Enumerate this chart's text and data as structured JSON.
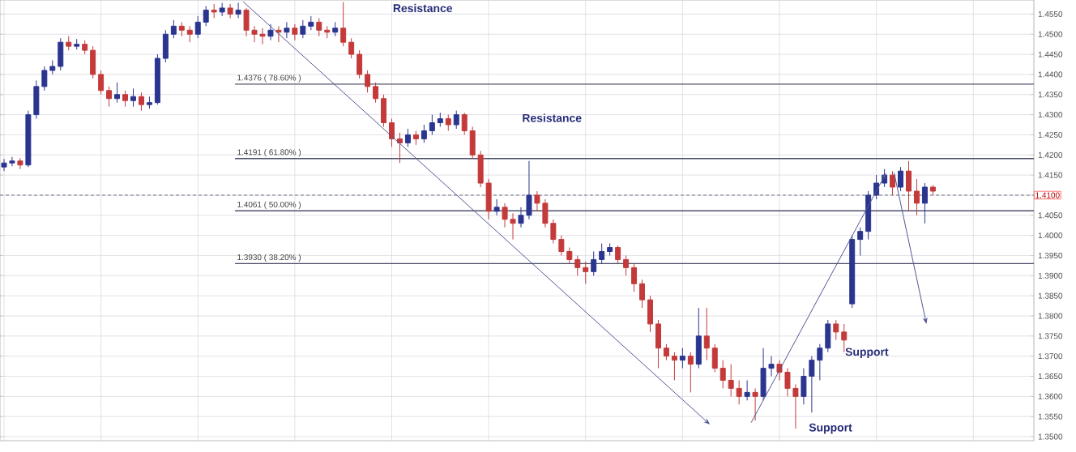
{
  "chart_data": {
    "type": "candlestick",
    "categories": [
      null,
      null,
      null,
      null,
      null,
      null,
      null,
      null,
      null,
      null,
      null,
      null,
      null,
      null,
      null,
      null,
      null,
      null,
      null,
      null,
      null,
      null,
      null,
      null,
      null,
      null,
      null,
      null,
      null,
      null,
      null,
      null,
      null,
      null,
      null,
      null,
      null,
      null,
      null,
      null,
      null,
      null,
      null,
      null,
      null,
      null,
      null,
      null,
      null,
      null,
      null,
      null,
      null,
      null,
      null,
      null,
      null,
      null,
      null,
      null,
      null,
      null,
      null,
      null,
      null,
      null,
      null,
      null,
      null,
      null,
      null,
      null,
      null,
      null,
      null,
      null,
      null,
      null,
      null,
      null,
      null,
      null,
      null,
      null,
      null,
      null,
      null,
      null,
      null,
      null,
      null,
      null,
      null,
      null,
      null,
      null,
      null,
      null,
      null,
      null,
      null,
      null,
      null,
      null,
      null,
      null,
      null,
      null,
      null,
      null,
      null,
      null,
      null,
      null,
      null,
      null,
      null,
      null,
      null,
      null,
      null,
      null,
      null,
      null,
      null,
      null,
      null,
      null
    ],
    "ohlc": [
      [
        1.417,
        1.419,
        1.416,
        1.418
      ],
      [
        1.418,
        1.4195,
        1.4172,
        1.4185
      ],
      [
        1.4185,
        1.4192,
        1.4165,
        1.4175
      ],
      [
        1.4175,
        1.431,
        1.417,
        1.43
      ],
      [
        1.43,
        1.4385,
        1.429,
        1.437
      ],
      [
        1.437,
        1.442,
        1.436,
        1.441
      ],
      [
        1.441,
        1.4435,
        1.44,
        1.442
      ],
      [
        1.442,
        1.449,
        1.441,
        1.448
      ],
      [
        1.448,
        1.4495,
        1.446,
        1.447
      ],
      [
        1.447,
        1.4488,
        1.4462,
        1.4475
      ],
      [
        1.4475,
        1.4485,
        1.445,
        1.446
      ],
      [
        1.446,
        1.447,
        1.439,
        1.44
      ],
      [
        1.44,
        1.441,
        1.435,
        1.436
      ],
      [
        1.436,
        1.437,
        1.432,
        1.434
      ],
      [
        1.434,
        1.438,
        1.433,
        1.435
      ],
      [
        1.435,
        1.436,
        1.432,
        1.4335
      ],
      [
        1.4335,
        1.4365,
        1.432,
        1.4345
      ],
      [
        1.4345,
        1.4355,
        1.431,
        1.4325
      ],
      [
        1.4325,
        1.4345,
        1.4315,
        1.433
      ],
      [
        1.433,
        1.445,
        1.4325,
        1.444
      ],
      [
        1.444,
        1.451,
        1.443,
        1.45
      ],
      [
        1.45,
        1.4535,
        1.449,
        1.452
      ],
      [
        1.452,
        1.453,
        1.4495,
        1.451
      ],
      [
        1.451,
        1.452,
        1.448,
        1.45
      ],
      [
        1.45,
        1.4545,
        1.449,
        1.453
      ],
      [
        1.453,
        1.457,
        1.452,
        1.456
      ],
      [
        1.456,
        1.4575,
        1.454,
        1.4555
      ],
      [
        1.4555,
        1.4578,
        1.4545,
        1.4565
      ],
      [
        1.4565,
        1.4575,
        1.454,
        1.455
      ],
      [
        1.455,
        1.4578,
        1.454,
        1.456
      ],
      [
        1.456,
        1.4565,
        1.4495,
        1.451
      ],
      [
        1.451,
        1.452,
        1.448,
        1.45
      ],
      [
        1.45,
        1.4515,
        1.4475,
        1.4495
      ],
      [
        1.4495,
        1.4525,
        1.4485,
        1.451
      ],
      [
        1.451,
        1.452,
        1.448,
        1.4505
      ],
      [
        1.4505,
        1.453,
        1.449,
        1.4515
      ],
      [
        1.4515,
        1.4525,
        1.4485,
        1.45
      ],
      [
        1.45,
        1.4535,
        1.449,
        1.452
      ],
      [
        1.452,
        1.4545,
        1.451,
        1.453
      ],
      [
        1.453,
        1.454,
        1.4495,
        1.451
      ],
      [
        1.451,
        1.452,
        1.449,
        1.4505
      ],
      [
        1.4505,
        1.453,
        1.4495,
        1.4515
      ],
      [
        1.4515,
        1.458,
        1.447,
        1.448
      ],
      [
        1.448,
        1.449,
        1.444,
        1.445
      ],
      [
        1.445,
        1.446,
        1.439,
        1.44
      ],
      [
        1.44,
        1.441,
        1.4355,
        1.437
      ],
      [
        1.437,
        1.438,
        1.433,
        1.434
      ],
      [
        1.434,
        1.435,
        1.427,
        1.428
      ],
      [
        1.428,
        1.429,
        1.422,
        1.424
      ],
      [
        1.424,
        1.4255,
        1.418,
        1.423
      ],
      [
        1.423,
        1.4265,
        1.422,
        1.425
      ],
      [
        1.425,
        1.426,
        1.4225,
        1.424
      ],
      [
        1.424,
        1.4275,
        1.423,
        1.426
      ],
      [
        1.426,
        1.43,
        1.425,
        1.428
      ],
      [
        1.428,
        1.4305,
        1.427,
        1.429
      ],
      [
        1.429,
        1.43,
        1.426,
        1.4275
      ],
      [
        1.4275,
        1.431,
        1.4265,
        1.43
      ],
      [
        1.43,
        1.4305,
        1.425,
        1.426
      ],
      [
        1.426,
        1.427,
        1.419,
        1.42
      ],
      [
        1.42,
        1.421,
        1.412,
        1.413
      ],
      [
        1.413,
        1.414,
        1.404,
        1.406
      ],
      [
        1.406,
        1.409,
        1.405,
        1.407
      ],
      [
        1.407,
        1.408,
        1.402,
        1.404
      ],
      [
        1.404,
        1.4055,
        1.399,
        1.403
      ],
      [
        1.403,
        1.407,
        1.402,
        1.405
      ],
      [
        1.405,
        1.4185,
        1.404,
        1.41
      ],
      [
        1.41,
        1.411,
        1.406,
        1.408
      ],
      [
        1.408,
        1.409,
        1.402,
        1.403
      ],
      [
        1.403,
        1.404,
        1.398,
        1.399
      ],
      [
        1.399,
        1.4,
        1.395,
        1.396
      ],
      [
        1.396,
        1.397,
        1.393,
        1.394
      ],
      [
        1.394,
        1.395,
        1.39,
        1.392
      ],
      [
        1.392,
        1.3935,
        1.388,
        1.391
      ],
      [
        1.391,
        1.396,
        1.39,
        1.394
      ],
      [
        1.394,
        1.398,
        1.393,
        1.396
      ],
      [
        1.396,
        1.398,
        1.395,
        1.397
      ],
      [
        1.397,
        1.3975,
        1.393,
        1.394
      ],
      [
        1.394,
        1.395,
        1.39,
        1.392
      ],
      [
        1.392,
        1.393,
        1.386,
        1.388
      ],
      [
        1.388,
        1.389,
        1.382,
        1.384
      ],
      [
        1.384,
        1.385,
        1.376,
        1.378
      ],
      [
        1.378,
        1.379,
        1.367,
        1.372
      ],
      [
        1.372,
        1.373,
        1.369,
        1.37
      ],
      [
        1.37,
        1.371,
        1.364,
        1.369
      ],
      [
        1.369,
        1.372,
        1.367,
        1.37
      ],
      [
        1.37,
        1.371,
        1.361,
        1.368
      ],
      [
        1.368,
        1.382,
        1.367,
        1.375
      ],
      [
        1.375,
        1.382,
        1.369,
        1.372
      ],
      [
        1.372,
        1.373,
        1.366,
        1.367
      ],
      [
        1.367,
        1.369,
        1.362,
        1.364
      ],
      [
        1.364,
        1.368,
        1.36,
        1.362
      ],
      [
        1.362,
        1.364,
        1.358,
        1.36
      ],
      [
        1.36,
        1.364,
        1.359,
        1.361
      ],
      [
        1.361,
        1.362,
        1.354,
        1.36
      ],
      [
        1.36,
        1.372,
        1.359,
        1.367
      ],
      [
        1.367,
        1.37,
        1.365,
        1.368
      ],
      [
        1.368,
        1.369,
        1.364,
        1.366
      ],
      [
        1.366,
        1.367,
        1.36,
        1.362
      ],
      [
        1.362,
        1.363,
        1.352,
        1.36
      ],
      [
        1.36,
        1.367,
        1.358,
        1.365
      ],
      [
        1.365,
        1.37,
        1.356,
        1.369
      ],
      [
        1.369,
        1.373,
        1.364,
        1.372
      ],
      [
        1.372,
        1.379,
        1.371,
        1.378
      ],
      [
        1.378,
        1.379,
        1.374,
        1.376
      ],
      [
        1.376,
        1.378,
        1.371,
        1.374
      ],
      [
        1.383,
        1.4,
        1.382,
        1.399
      ],
      [
        1.399,
        1.402,
        1.395,
        1.401
      ],
      [
        1.401,
        1.411,
        1.399,
        1.41
      ],
      [
        1.41,
        1.415,
        1.409,
        1.413
      ],
      [
        1.413,
        1.4165,
        1.412,
        1.415
      ],
      [
        1.415,
        1.416,
        1.41,
        1.412
      ],
      [
        1.412,
        1.417,
        1.411,
        1.416
      ],
      [
        1.416,
        1.4185,
        1.406,
        1.411
      ],
      [
        1.411,
        1.414,
        1.405,
        1.408
      ],
      [
        1.408,
        1.413,
        1.403,
        1.412
      ],
      [
        1.412,
        1.4125,
        1.41,
        1.411
      ],
      null,
      null,
      null,
      null,
      null,
      null,
      null,
      null,
      null,
      null,
      null,
      null
    ],
    "colors": [
      "#2a3590",
      "#2a3590",
      "#c43a3a",
      "#2a3590",
      "#2a3590",
      "#2a3590",
      "#2a3590",
      "#2a3590",
      "#c43a3a",
      "#2a3590",
      "#c43a3a",
      "#c43a3a",
      "#c43a3a",
      "#c43a3a",
      "#2a3590",
      "#c43a3a",
      "#2a3590",
      "#c43a3a",
      "#2a3590",
      "#2a3590",
      "#2a3590",
      "#2a3590",
      "#c43a3a",
      "#c43a3a",
      "#2a3590",
      "#2a3590",
      "#c43a3a",
      "#2a3590",
      "#c43a3a",
      "#2a3590",
      "#c43a3a",
      "#c43a3a",
      "#c43a3a",
      "#2a3590",
      "#c43a3a",
      "#2a3590",
      "#c43a3a",
      "#2a3590",
      "#2a3590",
      "#c43a3a",
      "#c43a3a",
      "#2a3590",
      "#c43a3a",
      "#c43a3a",
      "#c43a3a",
      "#c43a3a",
      "#c43a3a",
      "#c43a3a",
      "#c43a3a",
      "#c43a3a",
      "#2a3590",
      "#c43a3a",
      "#2a3590",
      "#2a3590",
      "#2a3590",
      "#c43a3a",
      "#2a3590",
      "#c43a3a",
      "#c43a3a",
      "#c43a3a",
      "#c43a3a",
      "#2a3590",
      "#c43a3a",
      "#c43a3a",
      "#2a3590",
      "#2a3590",
      "#c43a3a",
      "#c43a3a",
      "#c43a3a",
      "#c43a3a",
      "#c43a3a",
      "#c43a3a",
      "#c43a3a",
      "#2a3590",
      "#2a3590",
      "#2a3590",
      "#c43a3a",
      "#c43a3a",
      "#c43a3a",
      "#c43a3a",
      "#c43a3a",
      "#c43a3a",
      "#c43a3a",
      "#c43a3a",
      "#2a3590",
      "#c43a3a",
      "#2a3590",
      "#c43a3a",
      "#c43a3a",
      "#c43a3a",
      "#c43a3a",
      "#c43a3a",
      "#2a3590",
      "#c43a3a",
      "#2a3590",
      "#2a3590",
      "#c43a3a",
      "#c43a3a",
      "#c43a3a",
      "#2a3590",
      "#2a3590",
      "#2a3590",
      "#2a3590",
      "#c43a3a",
      "#c43a3a",
      "#2a3590",
      "#2a3590",
      "#2a3590",
      "#2a3590",
      "#2a3590",
      "#c43a3a",
      "#2a3590",
      "#c43a3a",
      "#c43a3a",
      "#2a3590",
      "#c43a3a",
      null,
      null,
      null,
      null,
      null,
      null,
      null,
      null,
      null,
      null,
      null,
      null
    ],
    "ylim": [
      1.349,
      1.4585
    ],
    "yticks": [
      {
        "value": 1.35,
        "label": "1.3500"
      },
      {
        "value": 1.355,
        "label": "1.3550"
      },
      {
        "value": 1.36,
        "label": "1.3600"
      },
      {
        "value": 1.365,
        "label": "1.3650"
      },
      {
        "value": 1.37,
        "label": "1.3700"
      },
      {
        "value": 1.375,
        "label": "1.3750"
      },
      {
        "value": 1.38,
        "label": "1.3800"
      },
      {
        "value": 1.385,
        "label": "1.3850"
      },
      {
        "value": 1.39,
        "label": "1.3900"
      },
      {
        "value": 1.395,
        "label": "1.3950"
      },
      {
        "value": 1.4,
        "label": "1.4000"
      },
      {
        "value": 1.405,
        "label": "1.4050"
      },
      {
        "value": 1.41,
        "label": null
      },
      {
        "value": 1.415,
        "label": "1.4150"
      },
      {
        "value": 1.42,
        "label": "1.4200"
      },
      {
        "value": 1.425,
        "label": "1.4250"
      },
      {
        "value": 1.43,
        "label": "1.4300"
      },
      {
        "value": 1.435,
        "label": "1.4350"
      },
      {
        "value": 1.44,
        "label": "1.4400"
      },
      {
        "value": 1.445,
        "label": "1.4450"
      },
      {
        "value": 1.45,
        "label": "1.4500"
      },
      {
        "value": 1.455,
        "label": "1.4550"
      }
    ],
    "ref_lines": [
      {
        "axis": "y",
        "value": 1.4376,
        "label": "1.4376 ( 78.60% )",
        "color": "#4d5068"
      },
      {
        "axis": "y",
        "value": 1.4191,
        "label": "1.4191 ( 61.80% )",
        "color": "#4d5068"
      },
      {
        "axis": "y",
        "value": 1.4061,
        "label": "1.4061 ( 50.00% )",
        "color": "#4d5068"
      },
      {
        "axis": "y",
        "value": 1.393,
        "label": "1.3930 ( 38.20% )",
        "color": "#4d5068"
      },
      {
        "axis": "y",
        "value": 1.41,
        "label": "1.4100",
        "color": "#9a9aa8",
        "line_style": "dashed"
      }
    ],
    "annotations": [
      "Resistance",
      "Resistance",
      "Support",
      "Support"
    ],
    "grid": true
  }
}
